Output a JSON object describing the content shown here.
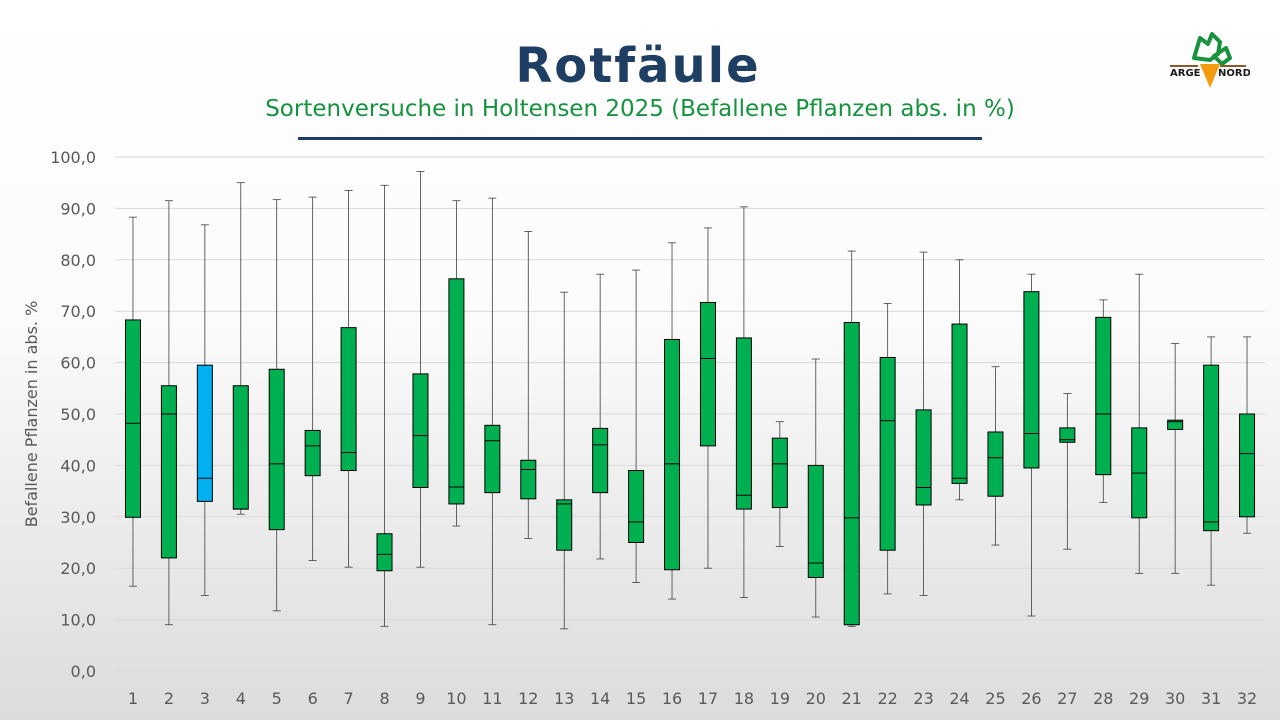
{
  "header": {
    "title": "Rotfäule",
    "subtitle": "Sortenversuche in Holtensen 2025 (Befallene Pflanzen abs. in %)"
  },
  "logo": {
    "text_top": "ARGE",
    "text_right": "NORD"
  },
  "chart_data": {
    "type": "box",
    "title": "Rotfäule",
    "subtitle": "Sortenversuche in Holtensen 2025 (Befallene Pflanzen abs. in %)",
    "ylabel": "Befallene Pflanzen in abs. %",
    "ylim": [
      0,
      100
    ],
    "yticks": [
      "0,0",
      "10,0",
      "20,0",
      "30,0",
      "40,0",
      "50,0",
      "60,0",
      "70,0",
      "80,0",
      "90,0",
      "100,0"
    ],
    "grid": true,
    "colors": {
      "default": "#00b050",
      "highlight": "#00b0f0"
    },
    "highlight": [
      "3"
    ],
    "categories": [
      "1",
      "2",
      "3",
      "4",
      "5",
      "6",
      "7",
      "8",
      "9",
      "10",
      "11",
      "12",
      "13",
      "14",
      "15",
      "16",
      "17",
      "18",
      "19",
      "20",
      "21",
      "22",
      "23",
      "24",
      "25",
      "26",
      "27",
      "28",
      "29",
      "30",
      "31",
      "32"
    ],
    "min": [
      16.5,
      9.0,
      14.7,
      30.5,
      11.7,
      21.5,
      20.2,
      8.7,
      20.2,
      28.2,
      9.0,
      25.8,
      8.2,
      21.8,
      17.2,
      14.0,
      20.0,
      14.3,
      24.2,
      10.5,
      8.7,
      15.0,
      14.7,
      33.3,
      24.5,
      10.7,
      23.7,
      32.8,
      19.0,
      19.0,
      16.7,
      26.8
    ],
    "q1": [
      29.9,
      22.0,
      33.0,
      31.5,
      27.5,
      38.0,
      39.0,
      19.5,
      35.7,
      32.5,
      34.7,
      33.5,
      23.5,
      34.7,
      25.0,
      19.7,
      43.8,
      31.5,
      31.8,
      18.2,
      9.0,
      23.5,
      32.3,
      36.5,
      34.0,
      39.5,
      44.5,
      38.2,
      29.8,
      47.0,
      27.3,
      30.0
    ],
    "median": [
      48.2,
      50.0,
      37.5,
      31.5,
      40.3,
      43.8,
      42.5,
      22.7,
      45.8,
      35.8,
      44.8,
      39.2,
      32.5,
      44.0,
      29.0,
      40.3,
      60.8,
      34.2,
      40.3,
      21.0,
      29.8,
      48.7,
      35.7,
      37.5,
      41.5,
      46.2,
      45.0,
      50.0,
      38.5,
      48.5,
      29.0,
      42.3
    ],
    "q3": [
      68.3,
      55.5,
      59.5,
      55.5,
      58.7,
      46.8,
      66.8,
      26.7,
      57.8,
      76.3,
      47.8,
      41.0,
      33.3,
      47.2,
      39.0,
      64.5,
      71.7,
      64.8,
      45.3,
      40.0,
      67.8,
      61.0,
      50.8,
      67.5,
      46.5,
      73.8,
      47.3,
      68.8,
      47.3,
      48.8,
      59.5,
      50.0
    ],
    "max": [
      88.3,
      91.5,
      86.8,
      95.0,
      91.7,
      92.2,
      93.5,
      94.5,
      97.2,
      91.5,
      92.0,
      85.5,
      73.7,
      77.2,
      78.0,
      83.3,
      86.2,
      90.3,
      48.5,
      60.7,
      81.7,
      71.5,
      81.5,
      80.0,
      59.2,
      77.2,
      54.0,
      72.2,
      77.2,
      63.7,
      65.0,
      65.0
    ]
  }
}
